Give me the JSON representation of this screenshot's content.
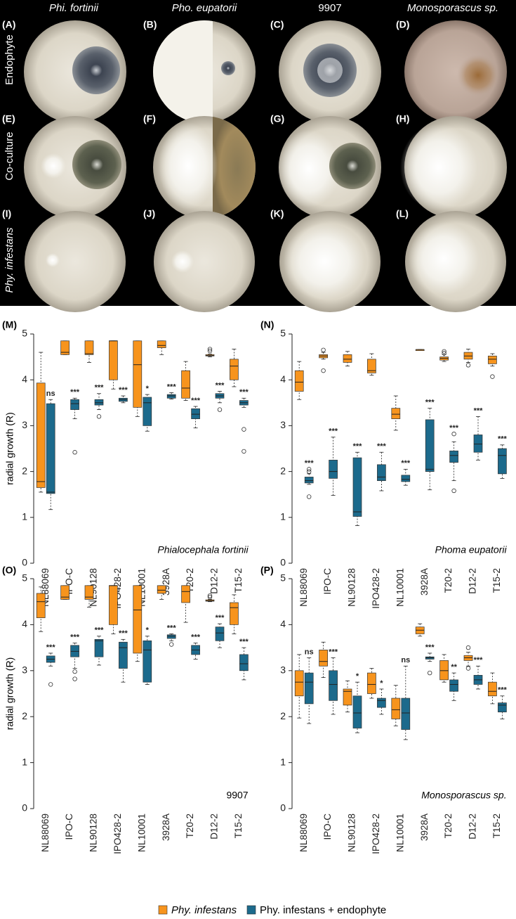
{
  "photo_panel": {
    "columns": [
      "Phi. fortinii",
      "Pho. eupatorii",
      "9907",
      "Monosporascus sp."
    ],
    "rows": [
      "Endophyte",
      "Co-culture",
      "Phy. infestans"
    ],
    "panel_labels": [
      "(A)",
      "(B)",
      "(C)",
      "(D)",
      "(E)",
      "(F)",
      "(G)",
      "(H)",
      "(I)",
      "(J)",
      "(K)",
      "(L)"
    ]
  },
  "chart_data": [
    {
      "type": "box",
      "panel": "(M)",
      "annotation": "Phialocephala fortinii",
      "y_label": "radial growth (R)",
      "categories": [
        "NL88069",
        "IPO-C",
        "NL90128",
        "IPO428-2",
        "NL10001",
        "3928A",
        "T20-2",
        "D12-2",
        "T15-2"
      ],
      "ylim": [
        0,
        5
      ],
      "yticks": [
        0,
        1,
        2,
        3,
        4,
        5
      ],
      "series": [
        {
          "name": "Phy. infestans",
          "color": "#f7941d",
          "min": [
            1.55,
            4.55,
            4.38,
            3.8,
            3.2,
            4.55,
            3.55,
            4.5,
            3.85
          ],
          "q1": [
            1.65,
            4.55,
            4.55,
            4.0,
            3.4,
            4.7,
            3.6,
            4.52,
            4.0
          ],
          "median": [
            1.78,
            4.6,
            4.57,
            4.85,
            4.33,
            4.75,
            3.82,
            4.53,
            4.3
          ],
          "q3": [
            3.93,
            4.85,
            4.85,
            4.85,
            4.85,
            4.85,
            4.2,
            4.55,
            4.45
          ],
          "max": [
            4.6,
            4.85,
            4.85,
            4.85,
            4.85,
            4.85,
            4.4,
            4.56,
            4.67
          ],
          "outliers": [
            [],
            [],
            [],
            [],
            [],
            [],
            [],
            [
              4.63,
              4.67
            ],
            []
          ]
        },
        {
          "name": "Phy. infestans + endophyte",
          "color": "#1c6a8c",
          "min": [
            1.17,
            3.15,
            3.35,
            3.5,
            2.88,
            3.58,
            2.95,
            3.5,
            3.4
          ],
          "q1": [
            1.52,
            3.35,
            3.45,
            3.53,
            3.0,
            3.6,
            3.15,
            3.6,
            3.45
          ],
          "median": [
            1.55,
            3.48,
            3.5,
            3.57,
            3.5,
            3.65,
            3.25,
            3.65,
            3.5
          ],
          "q3": [
            3.48,
            3.57,
            3.57,
            3.6,
            3.62,
            3.68,
            3.37,
            3.7,
            3.55
          ],
          "max": [
            3.57,
            3.6,
            3.7,
            3.65,
            3.68,
            3.72,
            3.42,
            3.75,
            3.6
          ],
          "outliers": [
            [],
            [
              2.42
            ],
            [
              3.2
            ],
            [],
            [],
            [],
            [],
            [
              3.35
            ],
            [
              2.92,
              2.44
            ]
          ]
        }
      ],
      "significance": [
        "ns",
        "***",
        "***",
        "***",
        "*",
        "***",
        "***",
        "***",
        "***"
      ]
    },
    {
      "type": "box",
      "panel": "(N)",
      "annotation": "Phoma eupatorii",
      "categories": [
        "NL88069",
        "IPO-C",
        "NL90128",
        "IPO428-2",
        "NL10001",
        "3928A",
        "T20-2",
        "D12-2",
        "T15-2"
      ],
      "ylim": [
        0,
        5
      ],
      "yticks": [
        0,
        1,
        2,
        3,
        4,
        5
      ],
      "series": [
        {
          "name": "Phy. infestans",
          "color": "#f7941d",
          "min": [
            3.57,
            4.45,
            4.3,
            4.1,
            2.9,
            4.66,
            4.4,
            4.38,
            4.3
          ],
          "q1": [
            3.75,
            4.48,
            4.38,
            4.15,
            3.15,
            4.66,
            4.43,
            4.45,
            4.35
          ],
          "median": [
            3.95,
            4.52,
            4.45,
            4.2,
            3.25,
            4.66,
            4.47,
            4.52,
            4.45
          ],
          "q3": [
            4.2,
            4.55,
            4.55,
            4.45,
            3.38,
            4.66,
            4.5,
            4.6,
            4.52
          ],
          "max": [
            4.4,
            4.6,
            4.62,
            4.57,
            3.65,
            4.66,
            4.55,
            4.67,
            4.57
          ],
          "outliers": [
            [],
            [
              4.2,
              4.65
            ],
            [],
            [],
            [],
            [],
            [
              4.58,
              4.62
            ],
            [
              4.32
            ],
            [
              4.07
            ]
          ]
        },
        {
          "name": "Phy. infestans + endophyte",
          "color": "#1c6a8c",
          "min": [
            1.72,
            1.48,
            0.82,
            1.58,
            1.7,
            1.6,
            1.8,
            2.25,
            1.85
          ],
          "q1": [
            1.75,
            1.85,
            1.02,
            1.8,
            1.78,
            2.0,
            2.2,
            2.42,
            1.95
          ],
          "median": [
            1.8,
            2.0,
            1.12,
            1.88,
            1.83,
            2.05,
            2.35,
            2.6,
            2.35
          ],
          "q3": [
            1.88,
            2.25,
            2.3,
            2.15,
            1.92,
            3.13,
            2.45,
            2.8,
            2.5
          ],
          "max": [
            1.95,
            2.75,
            2.42,
            2.42,
            2.05,
            3.38,
            2.65,
            3.2,
            2.58
          ],
          "outliers": [
            [
              2.0,
              2.05,
              1.45
            ],
            [],
            [],
            [],
            [],
            [],
            [
              2.82,
              1.58
            ],
            [],
            []
          ]
        }
      ],
      "significance": [
        "***",
        "***",
        "***",
        "***",
        "***",
        "***",
        "***",
        "***",
        "***"
      ]
    },
    {
      "type": "box",
      "panel": "(O)",
      "annotation": "9907",
      "y_label": "radial growth (R)",
      "categories": [
        "NL88069",
        "IPO-C",
        "NL90128",
        "IPO428-2",
        "NL10001",
        "3928A",
        "T20-2",
        "D12-2",
        "T15-2"
      ],
      "ylim": [
        0,
        5
      ],
      "yticks": [
        0,
        1,
        2,
        3,
        4,
        5
      ],
      "series": [
        {
          "name": "Phy. infestans",
          "color": "#f7941d",
          "min": [
            3.85,
            4.55,
            4.38,
            3.8,
            3.2,
            4.55,
            4.05,
            4.5,
            3.8
          ],
          "q1": [
            4.15,
            4.55,
            4.55,
            4.0,
            3.38,
            4.68,
            4.48,
            4.51,
            4.0
          ],
          "median": [
            4.5,
            4.6,
            4.6,
            4.85,
            4.32,
            4.75,
            4.72,
            4.52,
            4.37
          ],
          "q3": [
            4.68,
            4.85,
            4.85,
            4.85,
            4.85,
            4.85,
            4.85,
            4.54,
            4.48
          ],
          "max": [
            4.82,
            4.85,
            4.85,
            4.85,
            4.85,
            4.85,
            4.85,
            4.55,
            4.65
          ],
          "outliers": [
            [],
            [],
            [],
            [],
            [],
            [],
            [],
            [
              4.6,
              4.63
            ],
            []
          ]
        },
        {
          "name": "Phy. infestans + endophyte",
          "color": "#1c6a8c",
          "min": [
            3.1,
            3.05,
            3.12,
            2.75,
            2.7,
            3.65,
            3.25,
            3.5,
            2.8
          ],
          "q1": [
            3.18,
            3.3,
            3.3,
            3.05,
            2.75,
            3.7,
            3.35,
            3.65,
            3.0
          ],
          "median": [
            3.25,
            3.42,
            3.65,
            3.5,
            3.45,
            3.75,
            3.45,
            3.82,
            3.15
          ],
          "q3": [
            3.32,
            3.55,
            3.68,
            3.62,
            3.65,
            3.78,
            3.55,
            3.95,
            3.35
          ],
          "max": [
            3.38,
            3.6,
            3.75,
            3.68,
            3.75,
            3.8,
            3.6,
            4.02,
            3.5
          ],
          "outliers": [
            [
              2.7
            ],
            [
              2.98,
              2.82
            ],
            [],
            [],
            [],
            [
              3.57
            ],
            [],
            [],
            []
          ]
        }
      ],
      "significance": [
        "***",
        "***",
        "***",
        "***",
        "*",
        "***",
        "***",
        "***",
        "***"
      ]
    },
    {
      "type": "box",
      "panel": "(P)",
      "annotation": "Monosporascus sp.",
      "categories": [
        "NL88069",
        "IPO-C",
        "NL90128",
        "IPO428-2",
        "NL10001",
        "3928A",
        "T20-2",
        "D12-2",
        "T15-2"
      ],
      "ylim": [
        0,
        5
      ],
      "yticks": [
        0,
        1,
        2,
        3,
        4,
        5
      ],
      "series": [
        {
          "name": "Phy. infestans",
          "color": "#f7941d",
          "min": [
            1.97,
            2.85,
            2.1,
            2.4,
            1.8,
            3.75,
            2.75,
            3.1,
            2.28
          ],
          "q1": [
            2.45,
            3.1,
            2.25,
            2.5,
            1.95,
            3.8,
            2.8,
            3.22,
            2.45
          ],
          "median": [
            2.75,
            3.2,
            2.55,
            2.7,
            2.15,
            3.88,
            3.0,
            3.28,
            2.55
          ],
          "q3": [
            3.0,
            3.45,
            2.6,
            2.95,
            2.4,
            3.95,
            3.22,
            3.33,
            2.75
          ],
          "max": [
            3.35,
            3.62,
            2.78,
            3.05,
            2.68,
            4.02,
            3.35,
            3.4,
            2.95
          ],
          "outliers": [
            [],
            [],
            [],
            [],
            [],
            [],
            [],
            [
              3.5,
              3.05
            ],
            []
          ]
        },
        {
          "name": "Phy. infestans + endophyte",
          "color": "#1c6a8c",
          "min": [
            1.85,
            2.05,
            1.65,
            2.05,
            1.5,
            3.2,
            2.35,
            2.6,
            1.95
          ],
          "q1": [
            2.28,
            2.35,
            1.75,
            2.2,
            1.72,
            3.25,
            2.55,
            2.7,
            2.1
          ],
          "median": [
            2.75,
            2.7,
            2.08,
            2.35,
            2.08,
            3.28,
            2.7,
            2.8,
            2.25
          ],
          "q3": [
            2.95,
            3.0,
            2.45,
            2.4,
            2.4,
            3.3,
            2.8,
            2.9,
            2.3
          ],
          "max": [
            3.28,
            3.28,
            2.75,
            2.6,
            3.1,
            3.38,
            2.95,
            3.1,
            2.45
          ],
          "outliers": [
            [],
            [],
            [],
            [],
            [],
            [
              2.95
            ],
            [],
            [],
            []
          ]
        }
      ],
      "significance": [
        "ns",
        "***",
        "*",
        "*",
        "ns",
        "***",
        "**",
        "***",
        "***"
      ]
    }
  ]
}
